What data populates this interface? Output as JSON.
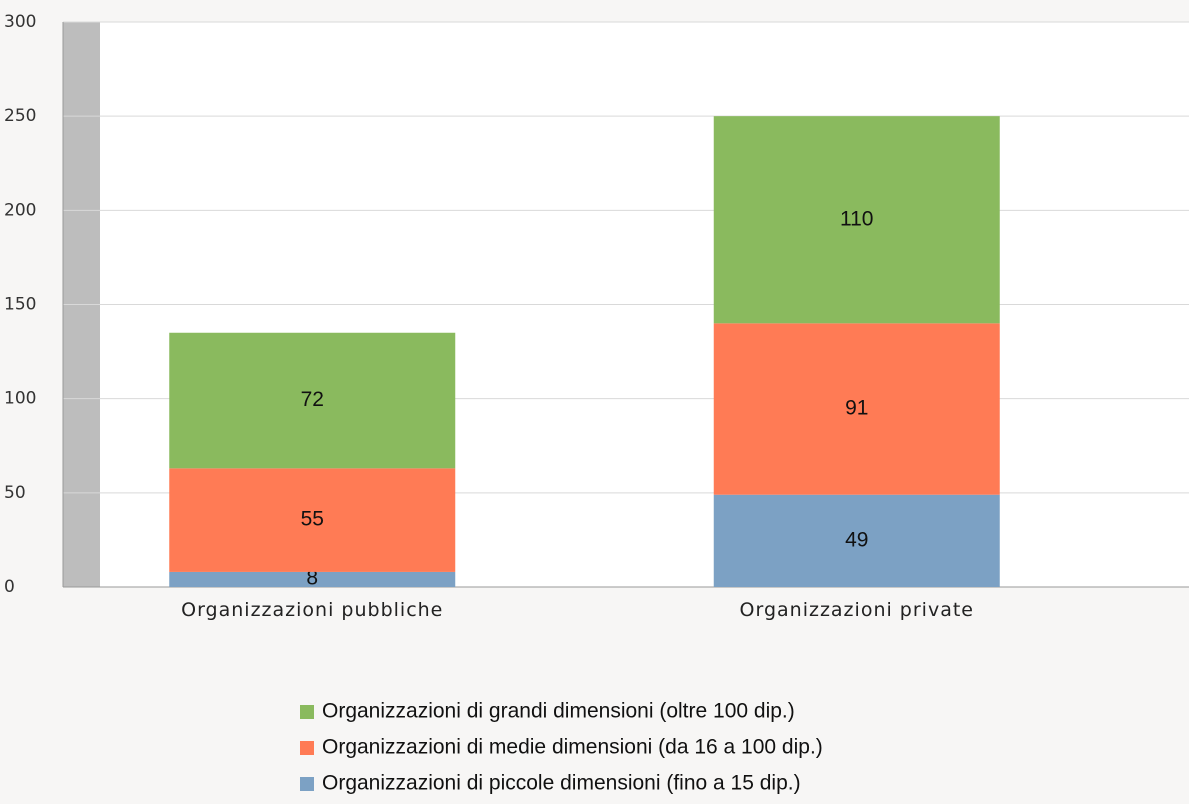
{
  "chart_data": {
    "type": "bar",
    "stacked": true,
    "categories": [
      "Organizzazioni pubbliche",
      "Organizzazioni private"
    ],
    "series": [
      {
        "name": "Organizzazioni di piccole dimensioni (fino a 15 dip.)",
        "color": "#7ca1c4",
        "values": [
          8,
          49
        ]
      },
      {
        "name": "Organizzazioni di medie dimensioni (da 16 a 100 dip.)",
        "color": "#ff7b55",
        "values": [
          55,
          91
        ]
      },
      {
        "name": "Organizzazioni di grandi dimensioni (oltre 100 dip.)",
        "color": "#8aba5e",
        "values": [
          72,
          110
        ]
      }
    ],
    "ylim": [
      0,
      300
    ],
    "yticks": [
      0,
      50,
      100,
      150,
      200,
      250,
      300
    ],
    "grid": true,
    "legend": "bottom"
  }
}
